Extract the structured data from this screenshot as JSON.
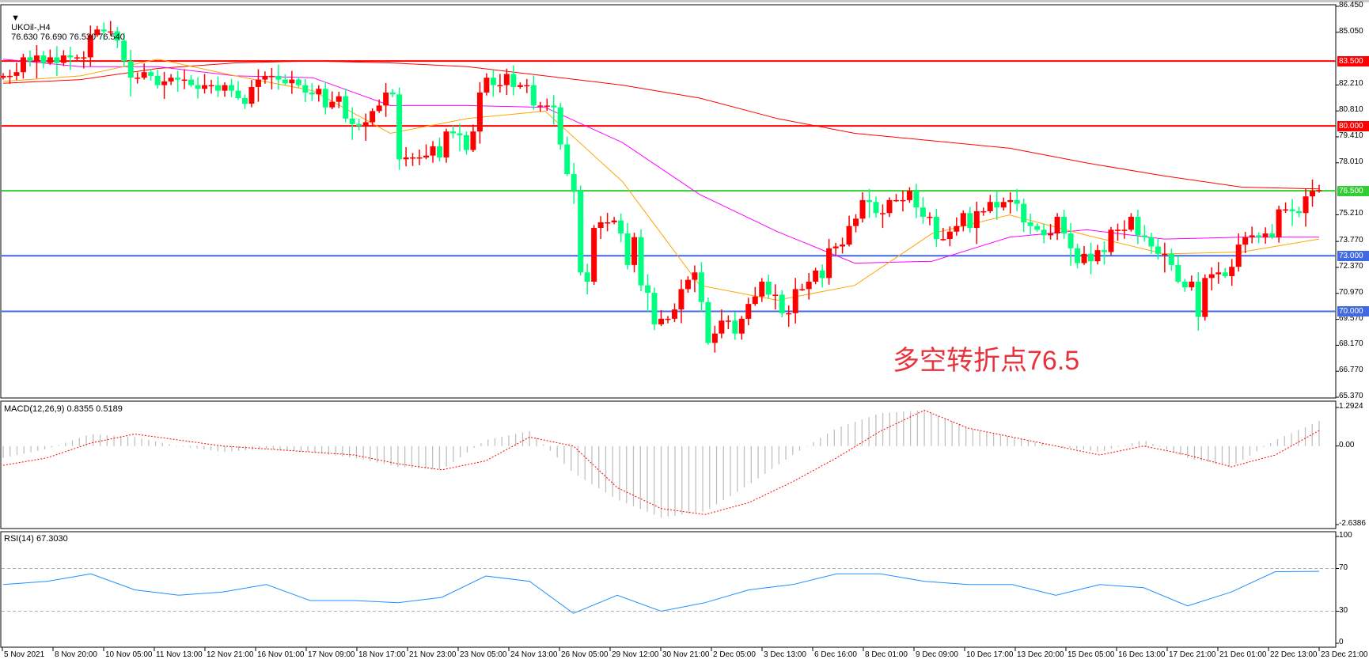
{
  "header": {
    "symbol": "UKOil-,H4",
    "ohlc": "76.630 76.690 76.530 76.540"
  },
  "annotation": "多空转折点76.5",
  "macd_label": "MACD(12,26,9) 0.8355 0.5189",
  "rsi_label": "RSI(14) 67.3030",
  "colors": {
    "up": "#ff0000",
    "down": "#00ff80",
    "ma_long": "#ff0000",
    "ma_mid": "#ff00ff",
    "ma_short": "#ffa500",
    "macd_hist": "#c0c0c0",
    "macd_signal": "#ff0000",
    "rsi": "#1e90ff"
  },
  "chart_data": [
    {
      "type": "candlestick",
      "title": "UKOil-,H4",
      "ylim": [
        65.37,
        86.45
      ],
      "price_ticks": [
        "86.450",
        "85.050",
        "82.210",
        "80.810",
        "79.410",
        "78.010",
        "75.210",
        "73.770",
        "72.370",
        "70.970",
        "69.570",
        "68.170",
        "66.770",
        "65.370"
      ],
      "x_ticks": [
        "5 Nov 2021",
        "8 Nov 20:00",
        "10 Nov 05:00",
        "11 Nov 13:00",
        "12 Nov 21:00",
        "16 Nov 01:00",
        "17 Nov 09:00",
        "18 Nov 17:00",
        "21 Nov 23:00",
        "23 Nov 05:00",
        "24 Nov 13:00",
        "26 Nov 05:00",
        "29 Nov 12:00",
        "30 Nov 21:00",
        "2 Dec 05:00",
        "3 Dec 13:00",
        "6 Dec 16:00",
        "8 Dec 01:00",
        "9 Dec 09:00",
        "10 Dec 17:00",
        "13 Dec 20:00",
        "15 Dec 05:00",
        "16 Dec 13:00",
        "17 Dec 21:00",
        "21 Dec 01:00",
        "22 Dec 13:00",
        "23 Dec 21:00"
      ],
      "closes": [
        82.7,
        82.7,
        82.9,
        83.7,
        83.5,
        83.8,
        83.4,
        83.7,
        83.4,
        83.8,
        83.7,
        83.7,
        83.7,
        84.9,
        85.2,
        85.1,
        85.1,
        84.6,
        83.5,
        82.6,
        82.6,
        82.9,
        82.7,
        82.2,
        82.4,
        82.6,
        82.5,
        82.5,
        82.2,
        82.0,
        82.2,
        82.2,
        81.9,
        82.2,
        81.9,
        81.5,
        81.2,
        82.1,
        82.5,
        82.7,
        82.7,
        82.5,
        82.3,
        82.5,
        82.2,
        81.8,
        81.7,
        82.0,
        81.0,
        81.3,
        81.6,
        80.4,
        80.1,
        80.0,
        80.2,
        80.8,
        81.1,
        81.8,
        81.7,
        78.2,
        78.3,
        78.3,
        78.3,
        78.4,
        78.9,
        78.3,
        79.7,
        79.6,
        79.5,
        78.7,
        79.7,
        81.8,
        82.6,
        82.2,
        82.2,
        82.8,
        82.1,
        82.2,
        82.2,
        81.1,
        81.1,
        81.1,
        81.0,
        79.0,
        77.4,
        76.5,
        72.1,
        71.6,
        74.5,
        74.8,
        74.8,
        74.9,
        74.2,
        72.5,
        74.0,
        71.4,
        71.0,
        69.3,
        69.6,
        69.6,
        70.1,
        71.2,
        71.7,
        72.1,
        70.5,
        68.3,
        68.8,
        69.5,
        69.5,
        68.8,
        69.6,
        70.4,
        70.8,
        71.6,
        70.9,
        70.9,
        69.9,
        69.9,
        71.2,
        71.2,
        71.6,
        72.2,
        71.8,
        73.4,
        73.5,
        73.6,
        74.6,
        75.0,
        76.0,
        75.9,
        75.3,
        75.3,
        76.0,
        76.0,
        76.0,
        76.5,
        75.6,
        75.1,
        75.1,
        73.9,
        73.9,
        74.3,
        74.6,
        75.3,
        74.5,
        75.4,
        75.4,
        75.9,
        75.6,
        75.9,
        76.0,
        75.8,
        74.8,
        74.6,
        74.4,
        74.1,
        74.2,
        75.1,
        74.2,
        73.4,
        72.6,
        73.1,
        72.7,
        73.3,
        73.2,
        74.4,
        74.4,
        74.4,
        75.1,
        74.1,
        74.0,
        73.5,
        73.1,
        73.1,
        72.5,
        71.6,
        71.3,
        71.6,
        69.7,
        71.8,
        72.0,
        72.1,
        71.9,
        72.4,
        73.6,
        74.0,
        74.1,
        74.0,
        74.2,
        74.0,
        75.5,
        75.5,
        75.4,
        75.3,
        76.2,
        76.5,
        76.54
      ],
      "moving_averages": [
        {
          "color": "#ff0000",
          "values": [
            82.3,
            82.5,
            83.1,
            83.4,
            83.5,
            83.4,
            83.2,
            82.7,
            82.2,
            81.5,
            80.4,
            79.6,
            79.2,
            78.8,
            78.0,
            77.3,
            76.7,
            76.6
          ]
        },
        {
          "color": "#ff00ff",
          "values": [
            83.6,
            83.2,
            83.2,
            82.7,
            82.6,
            81.1,
            81.1,
            81.0,
            79.1,
            76.3,
            74.3,
            72.6,
            72.7,
            74.0,
            74.4,
            73.9,
            74.0,
            74.0
          ]
        },
        {
          "color": "#ffa500",
          "values": [
            82.4,
            82.7,
            83.6,
            82.7,
            81.9,
            79.6,
            80.4,
            80.8,
            77.0,
            71.4,
            70.6,
            71.4,
            74.2,
            75.2,
            74.1,
            73.1,
            73.2,
            73.9
          ]
        }
      ],
      "levels": [
        {
          "value": 83.5,
          "label": "83.500",
          "color": "#ff0000"
        },
        {
          "value": 80.0,
          "label": "80.000",
          "color": "#ff0000"
        },
        {
          "value": 76.5,
          "label": "76.500",
          "color": "#32cd32"
        },
        {
          "value": 73.0,
          "label": "73.000",
          "color": "#4169e1"
        },
        {
          "value": 70.0,
          "label": "70.000",
          "color": "#4169e1"
        }
      ]
    },
    {
      "type": "bar+line",
      "title": "MACD(12,26,9)",
      "ylim": [
        -2.6386,
        1.2924
      ],
      "ticks": [
        "1.2924",
        "0.00",
        "-2.6386"
      ],
      "histogram": [
        -0.4,
        -0.1,
        0.4,
        0.3,
        0.0,
        -0.2,
        -0.1,
        -0.2,
        -0.4,
        -0.7,
        -0.8,
        0.2,
        0.5,
        -0.9,
        -1.8,
        -2.4,
        -2.2,
        -1.3,
        -0.3,
        0.6,
        1.1,
        1.2,
        0.6,
        0.3,
        0.0,
        -0.2,
        0.2,
        -0.4,
        -0.7,
        0.2,
        0.8355
      ],
      "signal": [
        -0.65,
        -0.4,
        0.1,
        0.4,
        0.2,
        0.0,
        -0.1,
        -0.2,
        -0.3,
        -0.6,
        -0.8,
        -0.5,
        0.3,
        0.0,
        -1.4,
        -2.1,
        -2.3,
        -1.9,
        -1.2,
        -0.4,
        0.5,
        1.2,
        0.6,
        0.3,
        0.0,
        -0.3,
        0.0,
        -0.3,
        -0.7,
        -0.3,
        0.5189
      ]
    },
    {
      "type": "line",
      "title": "RSI(14)",
      "ylim": [
        0,
        100
      ],
      "ticks": [
        "100",
        "70",
        "30",
        "0"
      ],
      "levels": [
        70,
        30
      ],
      "values": [
        55,
        58,
        65,
        50,
        45,
        48,
        55,
        40,
        40,
        38,
        43,
        63,
        58,
        28,
        45,
        30,
        38,
        50,
        55,
        65,
        65,
        58,
        55,
        55,
        45,
        55,
        52,
        35,
        48,
        67,
        67.303
      ]
    }
  ]
}
